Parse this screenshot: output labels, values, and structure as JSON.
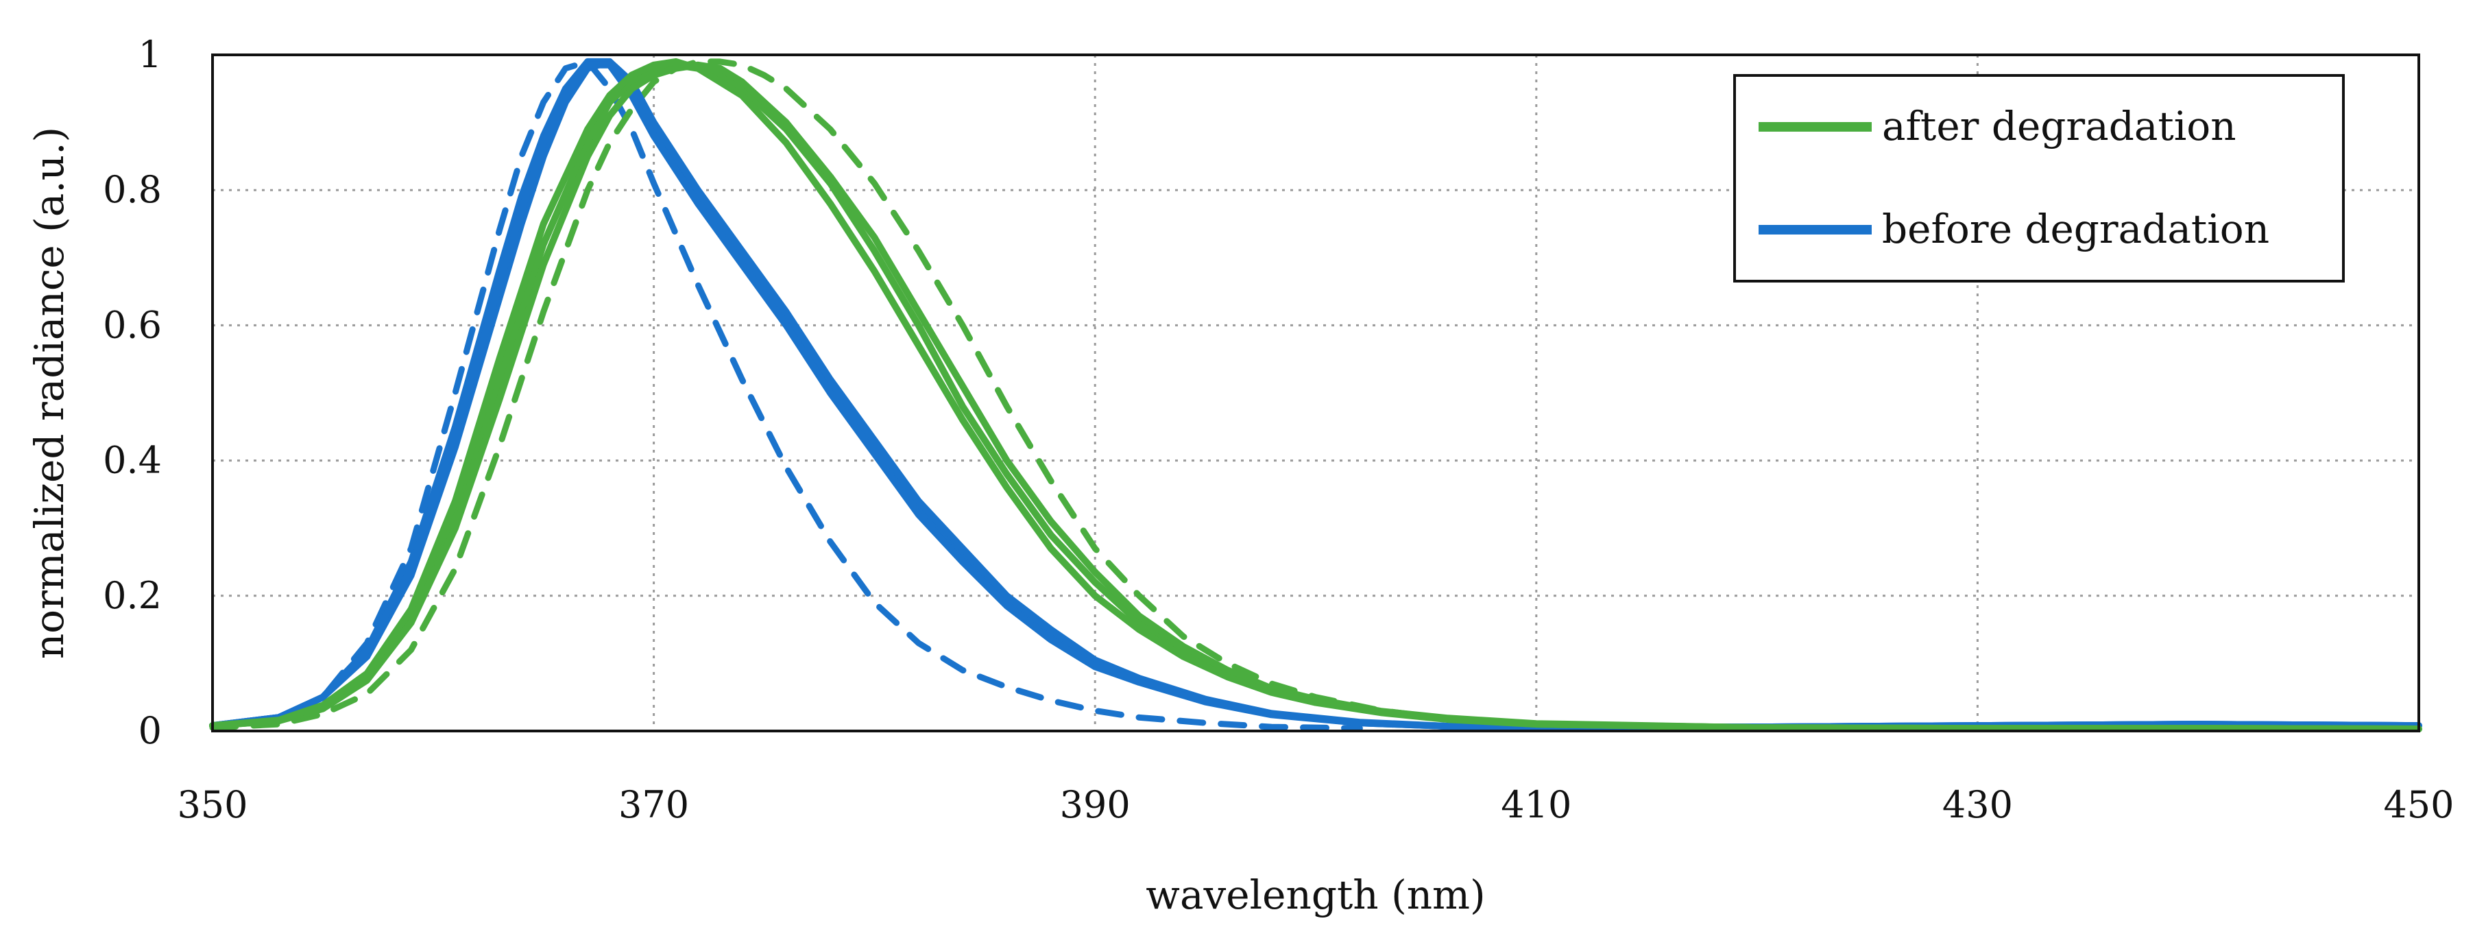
{
  "chart_data": {
    "type": "line",
    "title": "",
    "xlabel": "wavelength (nm)",
    "ylabel": "normalized radiance (a.u.)",
    "xlim": [
      350,
      450
    ],
    "ylim": [
      0,
      1
    ],
    "x_ticks": [
      "350",
      "370",
      "390",
      "410",
      "430",
      "450"
    ],
    "y_ticks": [
      "0",
      "0.2",
      "0.4",
      "0.6",
      "0.8",
      "1"
    ],
    "grid": true,
    "legend": {
      "position": "top-right",
      "entries": [
        {
          "label": "after degradation",
          "color": "#4aad3f"
        },
        {
          "label": "before degradation",
          "color": "#1a73cc"
        }
      ]
    },
    "series": [
      {
        "name": "before degradation 1",
        "group": "before",
        "color": "#1a73cc",
        "style": "solid",
        "x": [
          350,
          353,
          355,
          357,
          359,
          361,
          363,
          364,
          365,
          366,
          367,
          368,
          369,
          370,
          372,
          374,
          376,
          378,
          380,
          382,
          384,
          386,
          388,
          390,
          392,
          395,
          398,
          402,
          406,
          410,
          420,
          430,
          440,
          450
        ],
        "y": [
          0.008,
          0.02,
          0.05,
          0.12,
          0.25,
          0.45,
          0.68,
          0.79,
          0.88,
          0.95,
          0.99,
          0.99,
          0.95,
          0.89,
          0.79,
          0.7,
          0.61,
          0.51,
          0.42,
          0.33,
          0.26,
          0.19,
          0.14,
          0.1,
          0.075,
          0.045,
          0.025,
          0.012,
          0.007,
          0.005,
          0.006,
          0.008,
          0.01,
          0.008
        ]
      },
      {
        "name": "before degradation 2",
        "group": "before",
        "color": "#1a73cc",
        "style": "solid",
        "x": [
          350,
          353,
          355,
          357,
          359,
          361,
          363,
          364,
          365,
          366,
          367,
          368,
          369,
          370,
          372,
          374,
          376,
          378,
          380,
          382,
          384,
          386,
          388,
          390,
          392,
          395,
          398,
          402,
          406,
          410,
          420,
          430,
          440,
          450
        ],
        "y": [
          0.008,
          0.02,
          0.05,
          0.11,
          0.23,
          0.42,
          0.64,
          0.75,
          0.85,
          0.93,
          0.98,
          0.99,
          0.96,
          0.9,
          0.8,
          0.71,
          0.62,
          0.52,
          0.43,
          0.34,
          0.27,
          0.2,
          0.15,
          0.105,
          0.078,
          0.047,
          0.026,
          0.013,
          0.007,
          0.005,
          0.006,
          0.008,
          0.01,
          0.008
        ]
      },
      {
        "name": "before degradation 3",
        "group": "before",
        "color": "#1a73cc",
        "style": "solid",
        "x": [
          350,
          353,
          355,
          357,
          359,
          361,
          363,
          364,
          365,
          366,
          367,
          368,
          369,
          370,
          372,
          374,
          376,
          378,
          380,
          382,
          384,
          386,
          388,
          390,
          392,
          395,
          398,
          402,
          406,
          410,
          420,
          430,
          440,
          450
        ],
        "y": [
          0.008,
          0.02,
          0.05,
          0.12,
          0.24,
          0.44,
          0.66,
          0.77,
          0.87,
          0.94,
          0.985,
          0.985,
          0.94,
          0.88,
          0.78,
          0.69,
          0.6,
          0.5,
          0.41,
          0.32,
          0.25,
          0.185,
          0.135,
          0.095,
          0.072,
          0.043,
          0.024,
          0.012,
          0.007,
          0.005,
          0.006,
          0.008,
          0.01,
          0.008
        ]
      },
      {
        "name": "before degradation 4 (dashed)",
        "group": "before",
        "color": "#1a73cc",
        "style": "dashed",
        "x": [
          350,
          353,
          355,
          357,
          359,
          361,
          363,
          364,
          365,
          366,
          367,
          368,
          369,
          370,
          372,
          374,
          376,
          378,
          380,
          382,
          384,
          386,
          388,
          390,
          392,
          395,
          398,
          402
        ],
        "y": [
          0.008,
          0.02,
          0.05,
          0.13,
          0.27,
          0.5,
          0.74,
          0.85,
          0.93,
          0.98,
          0.99,
          0.95,
          0.89,
          0.81,
          0.66,
          0.52,
          0.39,
          0.28,
          0.19,
          0.13,
          0.09,
          0.065,
          0.045,
          0.03,
          0.02,
          0.012,
          0.006,
          0.004
        ]
      },
      {
        "name": "after degradation 1",
        "group": "after",
        "color": "#4aad3f",
        "style": "solid",
        "x": [
          350,
          353,
          355,
          357,
          359,
          361,
          363,
          365,
          367,
          368,
          369,
          370,
          371,
          372,
          373,
          374,
          376,
          378,
          380,
          382,
          384,
          386,
          388,
          390,
          392,
          394,
          396,
          398,
          400,
          403,
          406,
          410,
          420,
          430,
          440,
          450
        ],
        "y": [
          0.008,
          0.015,
          0.035,
          0.08,
          0.17,
          0.32,
          0.52,
          0.72,
          0.87,
          0.93,
          0.96,
          0.98,
          0.985,
          0.98,
          0.97,
          0.95,
          0.89,
          0.81,
          0.71,
          0.6,
          0.48,
          0.38,
          0.29,
          0.22,
          0.16,
          0.12,
          0.085,
          0.06,
          0.045,
          0.028,
          0.018,
          0.01,
          0.005,
          0.004,
          0.004,
          0.003
        ]
      },
      {
        "name": "after degradation 2",
        "group": "after",
        "color": "#4aad3f",
        "style": "solid",
        "x": [
          350,
          353,
          355,
          357,
          359,
          361,
          363,
          365,
          367,
          368,
          369,
          370,
          371,
          372,
          373,
          374,
          376,
          378,
          380,
          382,
          384,
          386,
          388,
          390,
          392,
          394,
          396,
          398,
          400,
          403,
          406,
          410,
          420,
          430,
          440,
          450
        ],
        "y": [
          0.008,
          0.015,
          0.033,
          0.075,
          0.16,
          0.3,
          0.49,
          0.69,
          0.85,
          0.91,
          0.95,
          0.97,
          0.98,
          0.985,
          0.98,
          0.96,
          0.9,
          0.82,
          0.73,
          0.62,
          0.51,
          0.4,
          0.31,
          0.235,
          0.17,
          0.125,
          0.09,
          0.063,
          0.047,
          0.029,
          0.019,
          0.011,
          0.005,
          0.004,
          0.004,
          0.003
        ]
      },
      {
        "name": "after degradation 3",
        "group": "after",
        "color": "#4aad3f",
        "style": "solid",
        "x": [
          350,
          353,
          355,
          357,
          359,
          361,
          363,
          365,
          367,
          368,
          369,
          370,
          371,
          372,
          373,
          374,
          376,
          378,
          380,
          382,
          384,
          386,
          388,
          390,
          392,
          394,
          396,
          398,
          400,
          403,
          406,
          410,
          420,
          430,
          440,
          450
        ],
        "y": [
          0.008,
          0.016,
          0.038,
          0.085,
          0.18,
          0.34,
          0.55,
          0.75,
          0.89,
          0.94,
          0.97,
          0.985,
          0.99,
          0.98,
          0.96,
          0.94,
          0.87,
          0.78,
          0.68,
          0.57,
          0.46,
          0.36,
          0.27,
          0.2,
          0.15,
          0.11,
          0.08,
          0.057,
          0.042,
          0.027,
          0.017,
          0.01,
          0.005,
          0.004,
          0.004,
          0.003
        ]
      },
      {
        "name": "after degradation 4 (dashed)",
        "group": "after",
        "color": "#4aad3f",
        "style": "dashed",
        "x": [
          350,
          353,
          355,
          357,
          359,
          361,
          363,
          365,
          367,
          368,
          369,
          370,
          371,
          372,
          373,
          374,
          375,
          376,
          378,
          380,
          382,
          384,
          386,
          388,
          390,
          392,
          394,
          396,
          398,
          400,
          403,
          406,
          410
        ],
        "y": [
          0.005,
          0.01,
          0.025,
          0.055,
          0.12,
          0.24,
          0.42,
          0.62,
          0.8,
          0.87,
          0.92,
          0.96,
          0.98,
          0.99,
          0.99,
          0.985,
          0.97,
          0.95,
          0.89,
          0.81,
          0.71,
          0.6,
          0.48,
          0.37,
          0.27,
          0.2,
          0.14,
          0.1,
          0.07,
          0.05,
          0.03,
          0.018,
          0.01
        ]
      }
    ]
  }
}
